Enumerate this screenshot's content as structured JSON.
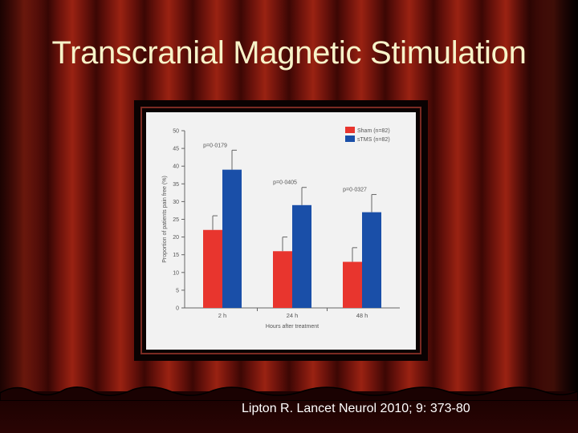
{
  "slide": {
    "title": "Transcranial Magnetic Stimulation",
    "citation": "Lipton R. Lancet Neurol 2010; 9: 373-80"
  },
  "colors": {
    "sham": "#e8352e",
    "stms": "#1a4fa8",
    "title_text": "#f7f3c9"
  },
  "chart_data": {
    "type": "bar",
    "categories": [
      "2 h",
      "24 h",
      "48 h"
    ],
    "series": [
      {
        "name": "Sham (n=82)",
        "values": [
          22,
          16,
          13
        ],
        "errors": [
          4,
          4,
          4
        ]
      },
      {
        "name": "sTMS (n=82)",
        "values": [
          39,
          29,
          27
        ],
        "errors": [
          5.5,
          5,
          5
        ]
      }
    ],
    "annotations": [
      "p=0·0179",
      "p=0·0405",
      "p=0·0327"
    ],
    "xlabel": "Hours after treatment",
    "ylabel": "Proportion of patients pain free (%)",
    "ylim": [
      0,
      50
    ],
    "yticks": [
      0,
      5,
      10,
      15,
      20,
      25,
      30,
      35,
      40,
      45,
      50
    ],
    "legend": "top-right",
    "grid": false
  }
}
